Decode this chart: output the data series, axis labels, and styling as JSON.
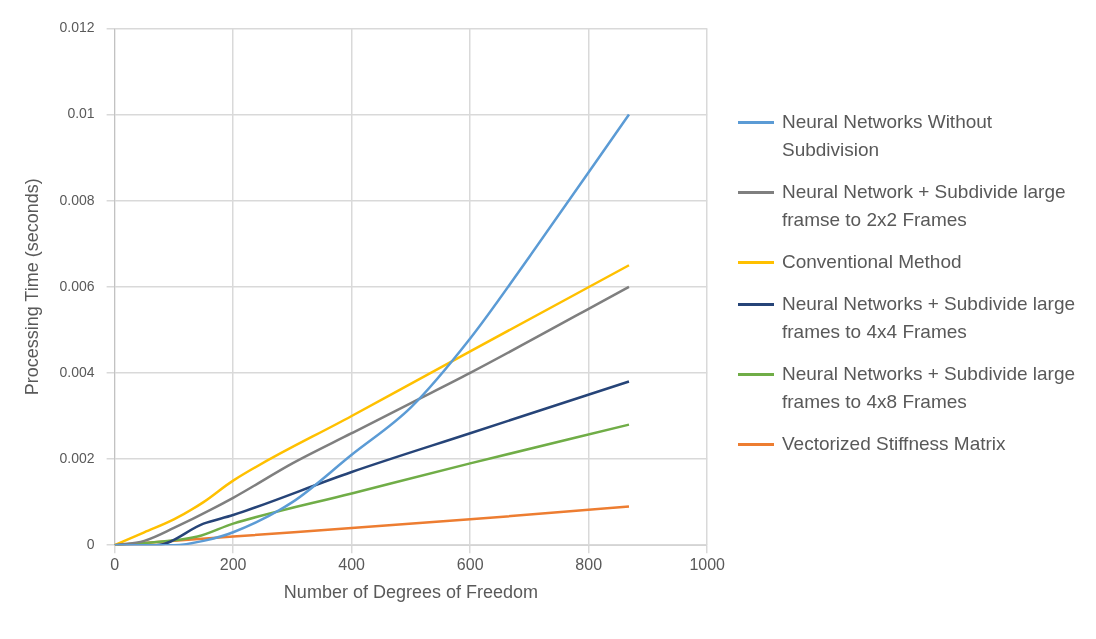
{
  "chart_data": {
    "type": "line",
    "xlabel": "Number of Degrees of Freedom",
    "ylabel": "Processing Time (seconds)",
    "xlim": [
      0,
      1000
    ],
    "xticks": [
      0,
      200,
      400,
      600,
      800,
      1000
    ],
    "ylim": [
      0,
      0.012
    ],
    "yticks": [
      0,
      0.002,
      0.004,
      0.006,
      0.008,
      0.01,
      0.012
    ],
    "grid": true,
    "legend": "right",
    "marker": "none",
    "line_style": "solid",
    "series": [
      {
        "name": "Neural Networks Without Subdivision",
        "color": "#5b9bd5",
        "x": [
          0,
          100,
          150,
          200,
          300,
          400,
          500,
          600,
          700,
          868
        ],
        "values": [
          0,
          0,
          0.0001,
          0.0003,
          0.001,
          0.0021,
          0.0032,
          0.0048,
          0.0067,
          0.01
        ]
      },
      {
        "name": "Neural Network + Subdivide large framse to 2x2 Frames",
        "color": "#7f7f7f",
        "x": [
          0,
          50,
          100,
          200,
          300,
          400,
          500,
          600,
          868
        ],
        "values": [
          0,
          0.0001,
          0.0004,
          0.0011,
          0.0019,
          0.0026,
          0.0033,
          0.004,
          0.006
        ]
      },
      {
        "name": "Conventional Method",
        "color": "#ffc000",
        "x": [
          0,
          50,
          100,
          150,
          200,
          400,
          600,
          868
        ],
        "values": [
          0,
          0.0003,
          0.0006,
          0.001,
          0.0015,
          0.003,
          0.0045,
          0.0065
        ]
      },
      {
        "name": "Neural Networks + Subdivide large frames to 4x4 Frames",
        "color": "#264478",
        "x": [
          0,
          70,
          150,
          200,
          400,
          600,
          868
        ],
        "values": [
          0,
          0,
          0.0005,
          0.0007,
          0.0017,
          0.0026,
          0.0038
        ]
      },
      {
        "name": "Neural Networks + Subdivide large frames to 4x8 Frames",
        "color": "#70ad47",
        "x": [
          0,
          140,
          200,
          400,
          600,
          868
        ],
        "values": [
          0,
          0.0002,
          0.0005,
          0.0012,
          0.0019,
          0.0028
        ]
      },
      {
        "name": "Vectorized Stiffness Matrix",
        "color": "#ed7d31",
        "x": [
          0,
          200,
          400,
          600,
          868
        ],
        "values": [
          0,
          0.0002,
          0.0004,
          0.0006,
          0.0009
        ]
      }
    ]
  }
}
